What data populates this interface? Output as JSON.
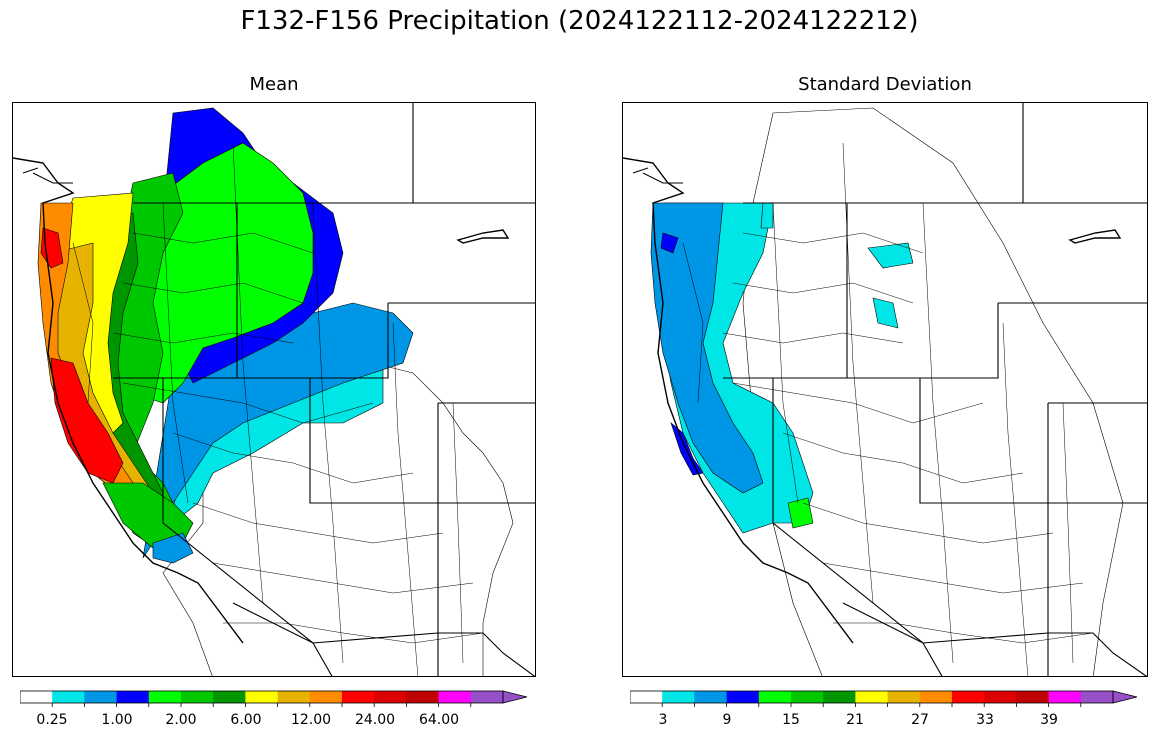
{
  "figure": {
    "title": "F132-F156 Precipitation (2024122112-2024122212)"
  },
  "panels": [
    {
      "title": "Mean"
    },
    {
      "title": "Standard Deviation"
    }
  ],
  "colormap": {
    "colors": [
      "#ffffff",
      "#00e6e6",
      "#0096e6",
      "#0000ff",
      "#00ff00",
      "#00c800",
      "#009600",
      "#ffff00",
      "#e6b400",
      "#ff8c00",
      "#ff0000",
      "#dc0000",
      "#be0000",
      "#ff00ff",
      "#9650c8"
    ],
    "extend": "max"
  },
  "mean_colorbar": {
    "tick_labels": [
      "0.25",
      "1.00",
      "2.00",
      "6.00",
      "12.00",
      "24.00",
      "64.00"
    ]
  },
  "std_colorbar": {
    "tick_labels": [
      "3",
      "9",
      "15",
      "21",
      "27",
      "33",
      "39"
    ]
  }
}
